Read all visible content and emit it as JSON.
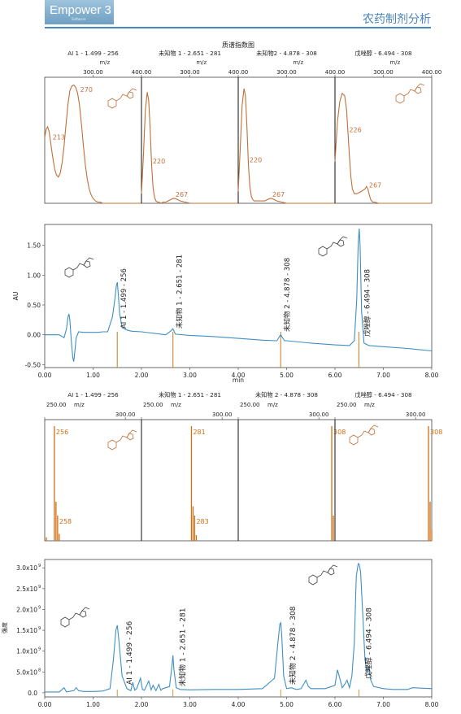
{
  "header": {
    "logo_text": "Empower 3",
    "logo_sub": "Software",
    "title": "农药制剂分析"
  },
  "colors": {
    "uv_trace": "#3f8fc3",
    "ms_trace": "#c0703a",
    "ms_bars": "#cf6f16",
    "peak_marker": "#c8791d",
    "header_accent": "#4a86bf"
  },
  "chart_data": [
    {
      "id": "uv_spectra",
      "type": "line",
      "title": "质谱指数图",
      "xlabel": "m/z",
      "xlim": [
        200,
        400
      ],
      "x_ticks": [
        300,
        400
      ],
      "x_tick_labels": [
        "300.00",
        "400.00"
      ],
      "panels": [
        {
          "name": "AI 1 - 1.499 - 256",
          "labels": [
            {
              "x": 213,
              "text": "213"
            },
            {
              "x": 270,
              "text": "270"
            }
          ],
          "x": [
            200,
            203,
            206,
            209,
            212,
            215,
            218,
            221,
            224,
            228,
            232,
            236,
            240,
            244,
            248,
            252,
            256,
            260,
            264,
            268,
            272,
            276,
            280,
            284,
            288,
            292,
            296,
            300,
            305,
            310,
            315,
            320,
            330,
            340,
            350,
            360,
            370,
            380,
            390,
            400
          ],
          "y": [
            0.55,
            0.62,
            0.64,
            0.6,
            0.52,
            0.43,
            0.35,
            0.28,
            0.24,
            0.22,
            0.25,
            0.34,
            0.48,
            0.66,
            0.83,
            0.94,
            0.98,
            0.99,
            0.97,
            0.92,
            0.82,
            0.66,
            0.48,
            0.32,
            0.2,
            0.12,
            0.07,
            0.04,
            0.02,
            0.01,
            0.01,
            0,
            0,
            0,
            0,
            0,
            0,
            0,
            0,
            0
          ]
        },
        {
          "name": "未知物 1 - 2.651 - 281",
          "labels": [
            {
              "x": 220,
              "text": "220"
            },
            {
              "x": 267,
              "text": "267"
            }
          ],
          "x": [
            200,
            204,
            208,
            212,
            215,
            218,
            221,
            224,
            227,
            230,
            233,
            236,
            240,
            245,
            250,
            255,
            260,
            265,
            270,
            275,
            280,
            290,
            300,
            320,
            340,
            360,
            380,
            400
          ],
          "y": [
            0.08,
            0.4,
            0.78,
            0.93,
            0.86,
            0.62,
            0.32,
            0.13,
            0.05,
            0.02,
            0.01,
            0.01,
            0,
            0.01,
            0.01,
            0.02,
            0.03,
            0.04,
            0.04,
            0.03,
            0.02,
            0.01,
            0,
            0,
            0,
            0,
            0,
            0
          ]
        },
        {
          "name": "未知物2 - 4.878 - 308",
          "labels": [
            {
              "x": 220,
              "text": "220"
            },
            {
              "x": 267,
              "text": "267"
            }
          ],
          "x": [
            200,
            204,
            208,
            212,
            215,
            218,
            221,
            224,
            227,
            230,
            233,
            236,
            240,
            245,
            250,
            255,
            260,
            265,
            270,
            275,
            280,
            290,
            300,
            320,
            340,
            360,
            380,
            400
          ],
          "y": [
            0.1,
            0.45,
            0.82,
            0.96,
            0.9,
            0.64,
            0.33,
            0.14,
            0.06,
            0.03,
            0.02,
            0.02,
            0.02,
            0.02,
            0.02,
            0.02,
            0.03,
            0.04,
            0.04,
            0.03,
            0.02,
            0.01,
            0,
            0,
            0,
            0,
            0,
            0
          ]
        },
        {
          "name": "戊唑醇 - 6.494 - 308",
          "labels": [
            {
              "x": 226,
              "text": "226"
            },
            {
              "x": 267,
              "text": "267"
            }
          ],
          "x": [
            200,
            205,
            210,
            215,
            220,
            224,
            227,
            230,
            233,
            236,
            240,
            245,
            250,
            255,
            258,
            262,
            265,
            268,
            271,
            274,
            278,
            282,
            290,
            300,
            320,
            340,
            360,
            380,
            400
          ],
          "y": [
            0.35,
            0.68,
            0.85,
            0.92,
            0.9,
            0.78,
            0.58,
            0.38,
            0.22,
            0.12,
            0.08,
            0.08,
            0.09,
            0.1,
            0.11,
            0.12,
            0.14,
            0.12,
            0.07,
            0.03,
            0.01,
            0.01,
            0,
            0,
            0,
            0,
            0,
            0,
            0
          ]
        }
      ]
    },
    {
      "id": "uv_chromatogram",
      "type": "line",
      "xlabel": "min",
      "ylabel": "AU",
      "xlim": [
        0,
        8
      ],
      "ylim": [
        -0.55,
        1.85
      ],
      "x_ticks": [
        0,
        1,
        2,
        3,
        4,
        5,
        6,
        7,
        8
      ],
      "x_tick_labels": [
        "0.00",
        "1.00",
        "2.00",
        "3.00",
        "4.00",
        "5.00",
        "6.00",
        "7.00",
        "8.00"
      ],
      "y_ticks": [
        -0.5,
        0,
        0.5,
        1,
        1.5
      ],
      "y_tick_labels": [
        "-0.50",
        "0.00",
        "0.50",
        "1.00",
        "1.50"
      ],
      "peaks": [
        {
          "t": 1.499,
          "label": "AI 1 - 1.499 - 256"
        },
        {
          "t": 2.651,
          "label": "未知物  1 - 2.651 - 281"
        },
        {
          "t": 4.878,
          "label": "未知物  2 - 4.878 - 308"
        },
        {
          "t": 6.494,
          "label": "戊唑醇 - 6.494 - 308"
        }
      ],
      "x": [
        0.0,
        0.1,
        0.2,
        0.3,
        0.4,
        0.45,
        0.48,
        0.5,
        0.52,
        0.55,
        0.58,
        0.6,
        0.62,
        0.65,
        0.7,
        0.8,
        0.9,
        1.0,
        1.1,
        1.2,
        1.3,
        1.4,
        1.45,
        1.48,
        1.5,
        1.52,
        1.55,
        1.6,
        1.7,
        1.8,
        2.0,
        2.5,
        2.6,
        2.65,
        2.7,
        3.0,
        3.5,
        4.0,
        4.5,
        4.8,
        4.86,
        4.88,
        4.9,
        4.96,
        5.0,
        5.5,
        6.0,
        6.3,
        6.4,
        6.45,
        6.48,
        6.5,
        6.52,
        6.55,
        6.6,
        6.7,
        7.0,
        7.5,
        8.0
      ],
      "y": [
        0.0,
        0.0,
        0.0,
        0.0,
        -0.05,
        0.1,
        0.3,
        0.35,
        0.25,
        -0.1,
        -0.38,
        -0.45,
        -0.3,
        -0.05,
        0.05,
        0.04,
        0.04,
        0.04,
        0.04,
        0.05,
        0.05,
        0.3,
        0.6,
        0.82,
        0.88,
        0.7,
        0.35,
        0.12,
        0.08,
        0.06,
        0.05,
        0.0,
        0.06,
        0.1,
        0.01,
        -0.01,
        -0.03,
        -0.06,
        -0.09,
        -0.1,
        -0.02,
        0.0,
        -0.03,
        -0.1,
        -0.1,
        -0.14,
        -0.17,
        -0.18,
        -0.1,
        0.6,
        1.55,
        1.78,
        1.5,
        0.4,
        -0.14,
        -0.18,
        -0.2,
        -0.23,
        -0.27
      ]
    },
    {
      "id": "ms_spectra",
      "type": "bar",
      "xlabel": "m/z",
      "xlim": [
        250,
        310
      ],
      "x_ticks": [
        250,
        300
      ],
      "x_tick_labels": [
        "250.00",
        "300.00"
      ],
      "panels": [
        {
          "name": "AI 1 - 1.499 - 256",
          "bars": [
            {
              "x": 256,
              "y": 1.0
            },
            {
              "x": 257,
              "y": 0.34
            },
            {
              "x": 258,
              "y": 0.22
            },
            {
              "x": 259,
              "y": 0.06
            },
            {
              "x": 251,
              "y": 0.03
            }
          ],
          "labels": [
            {
              "x": 256,
              "text": "256"
            },
            {
              "x": 258,
              "text": "258"
            }
          ]
        },
        {
          "name": "未知物 1 - 2.651 - 281",
          "bars": [
            {
              "x": 281,
              "y": 1.0
            },
            {
              "x": 282,
              "y": 0.3
            },
            {
              "x": 283,
              "y": 0.22
            },
            {
              "x": 284,
              "y": 0.05
            }
          ],
          "labels": [
            {
              "x": 281,
              "text": "281"
            },
            {
              "x": 283,
              "text": "283"
            }
          ]
        },
        {
          "name": "未知物 2 - 4.878 - 308",
          "bars": [
            {
              "x": 308,
              "y": 1.0
            },
            {
              "x": 309,
              "y": 0.22
            }
          ],
          "labels": [
            {
              "x": 308,
              "text": "308"
            }
          ]
        },
        {
          "name": "戊唑醇 - 6.494 - 308",
          "bars": [
            {
              "x": 308,
              "y": 1.0
            },
            {
              "x": 309,
              "y": 0.34
            },
            {
              "x": 310,
              "y": 0.1
            }
          ],
          "labels": [
            {
              "x": 308,
              "text": "308"
            }
          ]
        }
      ]
    },
    {
      "id": "ms_chromatogram",
      "type": "line",
      "ylabel": "强度",
      "xlim": [
        0,
        8
      ],
      "ylim": [
        -0.1,
        3.2
      ],
      "x_ticks": [
        0,
        1,
        2,
        3,
        4,
        5,
        6,
        7,
        8
      ],
      "x_tick_labels": [
        "0.00",
        "1.00",
        "2.00",
        "3.00",
        "4.00",
        "5.00",
        "6.00",
        "7.00",
        "8.00"
      ],
      "y_ticks": [
        0,
        0.5,
        1,
        1.5,
        2,
        2.5,
        3
      ],
      "y_tick_mantissas": [
        "0.0",
        "5.0x10",
        "1.0x10",
        "1.5x10",
        "2.0x10",
        "2.5x10",
        "3.0x10"
      ],
      "y_tick_exponents": [
        "",
        "8",
        "9",
        "9",
        "9",
        "9",
        "9"
      ],
      "peaks": [
        {
          "t": 1.499,
          "label": "AI 1 - 1.499 - 256"
        },
        {
          "t": 2.651,
          "label": "未知物  1 - 2.651 - 281"
        },
        {
          "t": 4.878,
          "label": "未知物  2 - 4.878 - 308"
        },
        {
          "t": 6.494,
          "label": "戊唑醇 - 6.494 - 308"
        }
      ],
      "x": [
        0.0,
        0.3,
        0.4,
        0.45,
        0.5,
        0.6,
        0.65,
        0.7,
        0.8,
        1.0,
        1.2,
        1.35,
        1.42,
        1.47,
        1.5,
        1.53,
        1.6,
        1.7,
        1.78,
        1.82,
        1.86,
        1.9,
        1.98,
        2.02,
        2.06,
        2.15,
        2.2,
        2.24,
        2.3,
        2.36,
        2.4,
        2.44,
        2.5,
        2.58,
        2.63,
        2.65,
        2.67,
        2.72,
        2.8,
        3.0,
        3.5,
        4.0,
        4.5,
        4.75,
        4.82,
        4.86,
        4.88,
        4.9,
        4.94,
        5.0,
        5.1,
        5.2,
        5.3,
        5.4,
        5.45,
        5.5,
        5.6,
        5.8,
        6.0,
        6.05,
        6.1,
        6.15,
        6.2,
        6.25,
        6.3,
        6.35,
        6.4,
        6.44,
        6.48,
        6.5,
        6.53,
        6.57,
        6.62,
        6.66,
        6.7,
        6.74,
        6.8,
        7.0,
        7.2,
        7.5,
        7.6,
        8.0
      ],
      "y": [
        0.02,
        0.02,
        0.12,
        0.02,
        0.03,
        0.05,
        0.12,
        0.05,
        0.03,
        0.03,
        0.04,
        0.1,
        0.8,
        1.5,
        1.62,
        1.3,
        0.4,
        0.1,
        0.05,
        0.25,
        0.06,
        0.1,
        0.35,
        0.08,
        0.06,
        0.28,
        0.07,
        0.18,
        0.05,
        0.2,
        0.06,
        0.1,
        0.12,
        0.15,
        0.65,
        0.9,
        0.55,
        0.12,
        0.08,
        0.07,
        0.08,
        0.08,
        0.1,
        0.35,
        1.2,
        1.65,
        1.68,
        1.35,
        0.4,
        0.1,
        0.12,
        0.08,
        0.1,
        0.3,
        0.15,
        0.1,
        0.1,
        0.1,
        0.18,
        0.55,
        0.35,
        0.12,
        0.2,
        0.3,
        0.12,
        0.4,
        1.2,
        2.8,
        3.1,
        3.08,
        2.9,
        2.0,
        0.8,
        0.5,
        0.6,
        0.3,
        0.15,
        0.1,
        0.08,
        0.08,
        0.12,
        0.1
      ]
    }
  ]
}
